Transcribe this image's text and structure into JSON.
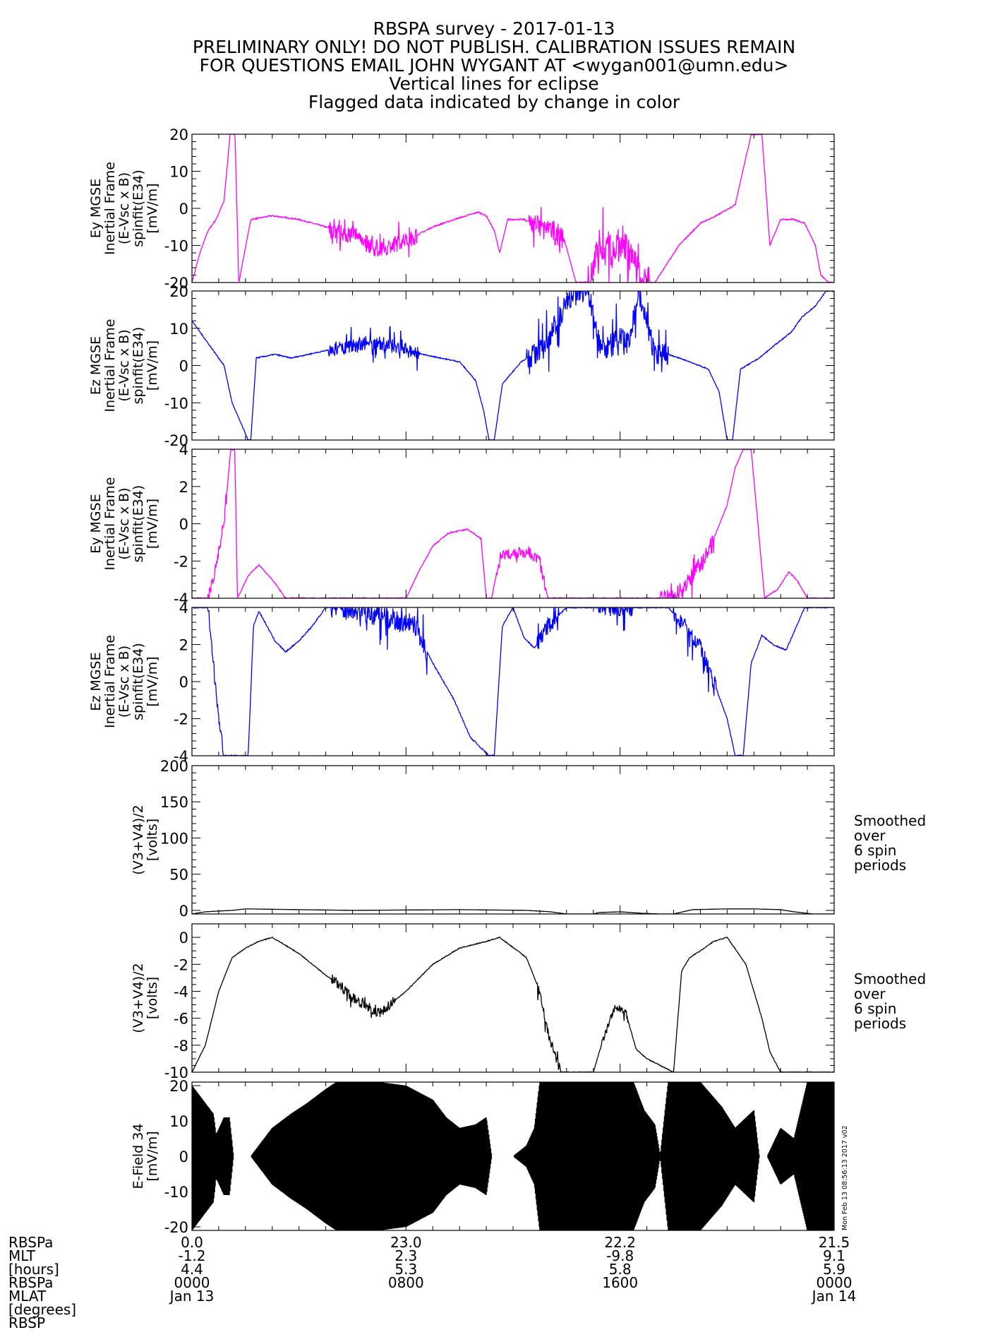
{
  "title_lines": [
    "RBSPA survey - 2017-01-13",
    "PRELIMINARY ONLY! DO NOT PUBLISH. CALIBRATION ISSUES REMAIN",
    "FOR QUESTIONS EMAIL JOHN WYGANT AT <wygan001@umn.edu>",
    "Vertical lines for eclipse",
    "Flagged data indicated by change in color"
  ],
  "colors": {
    "magenta": "#ff00ff",
    "blue": "#0000ff",
    "black": "#000000"
  },
  "side_note": [
    "Smoothed",
    "over",
    "6 spin",
    "periods"
  ],
  "timestamp": "Mon Feb 13 08:56:13 2017 v02",
  "chart_data": [
    {
      "type": "line",
      "name": "panel-ey-1",
      "color": "magenta",
      "ylabel": [
        "Ey MGSE",
        "Inertial Frame",
        "(E-Vsc x B)",
        "spinfit(E34)",
        "[mV/m]"
      ],
      "ylim": [
        -20,
        20
      ],
      "yticks": [
        -20,
        -10,
        0,
        10,
        20
      ],
      "minor": 5,
      "noise": 1.5,
      "x": [
        0,
        0.3,
        0.6,
        0.9,
        1.2,
        1.45,
        1.6,
        1.75,
        2.2,
        3,
        4,
        5,
        5.8,
        6.2,
        6.8,
        7.5,
        8.2,
        9,
        9.8,
        10.7,
        11,
        11.3,
        11.5,
        11.8,
        12.4,
        13.3,
        13.9,
        14.35,
        14.8,
        15.2,
        15.7,
        16.2,
        16.8,
        17.3,
        18.2,
        19,
        19.6,
        20.3,
        20.9,
        21.3,
        21.6,
        22,
        22.5,
        22.9,
        23.3,
        23.5,
        23.8,
        24
      ],
      "y": [
        -20,
        -12,
        -6,
        -3,
        2,
        22,
        22,
        -20,
        -3,
        -2,
        -3,
        -5,
        -7,
        -7,
        -11,
        -10,
        -8,
        -5,
        -3,
        -1,
        -2,
        -6,
        -12,
        -3,
        -3,
        -6,
        -8,
        -20,
        -20,
        -10,
        -12,
        -10,
        -20,
        -20,
        -10,
        -4,
        -2,
        1,
        20,
        20,
        -10,
        -3,
        -3,
        -4,
        -10,
        -18,
        -20,
        -20
      ],
      "noisy": [
        [
          5.1,
          8.4,
          3
        ],
        [
          12.6,
          13.9,
          4
        ],
        [
          14.8,
          17.1,
          6
        ]
      ]
    },
    {
      "type": "line",
      "name": "panel-ez-1",
      "color": "blue",
      "ylabel": [
        "Ez MGSE",
        "Inertial Frame",
        "(E-Vsc x B)",
        "spinfit(E34)",
        "[mV/m]"
      ],
      "ylim": [
        -20,
        20
      ],
      "yticks": [
        -20,
        -10,
        0,
        10,
        20
      ],
      "minor": 5,
      "noise": 1.2,
      "x": [
        0,
        0.3,
        0.6,
        0.9,
        1.2,
        1.5,
        2.1,
        2.2,
        2.4,
        3.1,
        3.7,
        5,
        6.5,
        7,
        7.8,
        8.6,
        10,
        10.6,
        10.9,
        11.1,
        11.3,
        11.6,
        12.3,
        12.8,
        13.2,
        13.5,
        13.9,
        14.3,
        14.8,
        15.3,
        15.8,
        16.3,
        16.7,
        17.3,
        17.8,
        18.6,
        19.3,
        19.7,
        20,
        20.2,
        20.5,
        21.2,
        21.7,
        22.4,
        22.8,
        23.3,
        23.7,
        24
      ],
      "y": [
        12,
        9,
        6,
        3,
        0,
        -10,
        -20,
        -20,
        2,
        3,
        2,
        4,
        6,
        6,
        5,
        3,
        1,
        -4,
        -12,
        -20,
        -20,
        -5,
        1,
        3,
        5,
        10,
        15,
        20,
        20,
        3,
        8,
        6,
        20,
        3,
        3,
        1,
        -1,
        -7,
        -20,
        -20,
        -1,
        2,
        5,
        9,
        13,
        16,
        20,
        20
      ],
      "noisy": [
        [
          5.1,
          8.5,
          3
        ],
        [
          12.5,
          17.8,
          5
        ]
      ]
    },
    {
      "type": "line",
      "name": "panel-ey-2",
      "color": "magenta",
      "ylabel": [
        "Ey MGSE",
        "Inertial Frame",
        "(E-Vsc x B)",
        "spinfit(E34)",
        "[mV/m]"
      ],
      "ylim": [
        -4,
        4
      ],
      "yticks": [
        -4,
        -2,
        0,
        2,
        4
      ],
      "minor": 5,
      "noise": 0.3,
      "x": [
        0,
        0.6,
        0.8,
        1,
        1.2,
        1.45,
        1.6,
        1.7,
        2.1,
        2.5,
        3,
        3.5,
        3.7,
        5,
        8,
        8.5,
        9,
        9.6,
        10.3,
        10.8,
        11,
        11.2,
        11.5,
        12,
        12.6,
        13,
        13.3,
        14,
        17,
        18,
        18.6,
        19.3,
        20,
        20.3,
        20.6,
        20.9,
        21.4,
        21.9,
        22.3,
        22.6,
        23,
        24
      ],
      "y": [
        -4,
        -4,
        -3,
        -1.5,
        0,
        4,
        4,
        -4,
        -2.8,
        -2.2,
        -3,
        -4,
        -4,
        -4,
        -4,
        -2.5,
        -1.2,
        -0.5,
        -0.3,
        -0.8,
        -4,
        -4,
        -1.8,
        -1.6,
        -1.5,
        -2,
        -4,
        -4,
        -4,
        -4,
        -3,
        -1.5,
        1,
        3,
        4,
        4,
        -4,
        -3.5,
        -2.6,
        -3,
        -4,
        -4
      ],
      "noisy": [
        [
          0.6,
          1.3,
          2
        ],
        [
          11.4,
          13.2,
          2
        ],
        [
          17.5,
          19.5,
          3
        ]
      ]
    },
    {
      "type": "line",
      "name": "panel-ez-2",
      "color": "blue",
      "ylabel": [
        "Ez MGSE",
        "Inertial Frame",
        "(E-Vsc x B)",
        "spinfit(E34)",
        "[mV/m]"
      ],
      "ylim": [
        -4,
        4
      ],
      "yticks": [
        -4,
        -2,
        0,
        2,
        4
      ],
      "minor": 5,
      "noise": 0.3,
      "x": [
        0,
        0.6,
        0.8,
        1,
        1.2,
        1.4,
        2.1,
        2.3,
        2.5,
        3.1,
        3.5,
        4,
        4.5,
        5,
        6,
        8.3,
        9,
        9.8,
        10.4,
        11.1,
        11.3,
        11.6,
        12,
        12.4,
        12.8,
        13.3,
        14,
        17.8,
        18.3,
        19,
        19.5,
        20,
        20.3,
        20.6,
        20.9,
        21.3,
        21.7,
        22.2,
        22.6,
        22.9,
        23.2,
        24
      ],
      "y": [
        4,
        4,
        1,
        -2,
        -4,
        -4,
        -4,
        3,
        3.8,
        2.2,
        1.6,
        2.2,
        3,
        4,
        4,
        3,
        1,
        -1,
        -3,
        -4,
        -4,
        3,
        4,
        2.4,
        1.8,
        3,
        4,
        4,
        3.2,
        1.8,
        0,
        -2,
        -4,
        -4,
        1,
        2.5,
        2,
        1.7,
        3,
        4,
        4,
        4
      ],
      "noisy": [
        [
          0.6,
          1.2,
          2
        ],
        [
          5.2,
          8.8,
          4
        ],
        [
          12.9,
          13.7,
          3
        ],
        [
          15.2,
          16.5,
          3
        ],
        [
          18,
          19.6,
          3
        ]
      ]
    },
    {
      "type": "line",
      "name": "panel-potential-1",
      "color": "black",
      "ylabel": [
        "(V3+V4)/2",
        "[volts]"
      ],
      "ylim": [
        -5,
        200
      ],
      "yticks": [
        0,
        50,
        100,
        150,
        200
      ],
      "minor": 5,
      "noise": 0.4,
      "annotation": true,
      "x": [
        0,
        0.5,
        1.5,
        2,
        4,
        6,
        10,
        12.5,
        13.4,
        14,
        15,
        15.2,
        16,
        16.8,
        17.5,
        18,
        18.7,
        20,
        21,
        22,
        22.5,
        23.2,
        24
      ],
      "y": [
        -5,
        -2,
        0,
        2,
        1,
        0,
        1,
        0,
        -2,
        -5,
        -5,
        -3,
        -2,
        -4,
        -5,
        -5,
        1,
        2,
        2,
        1,
        -2,
        -5,
        -5
      ],
      "noisy": []
    },
    {
      "type": "line",
      "name": "panel-potential-2",
      "color": "black",
      "ylabel": [
        "(V3+V4)/2",
        "[volts]"
      ],
      "ylim": [
        -10,
        1
      ],
      "yticks": [
        -10,
        -8,
        -6,
        -4,
        -2,
        0
      ],
      "minor": 4,
      "noise": 0.25,
      "annotation": true,
      "x": [
        0,
        0.5,
        1,
        1.5,
        2,
        2.5,
        3,
        4,
        5,
        5.5,
        6,
        7,
        8,
        9,
        10,
        11,
        11.5,
        12.5,
        13,
        13.3,
        13.6,
        13.8,
        14,
        15,
        15.3,
        15.8,
        16.2,
        16.6,
        17,
        18,
        18.3,
        18.6,
        19,
        19.5,
        20,
        20.7,
        21,
        21.3,
        21.6,
        22,
        22.5,
        23,
        24
      ],
      "y": [
        -10,
        -8,
        -4,
        -1.5,
        -0.8,
        -0.3,
        0,
        -1.2,
        -2.8,
        -3.5,
        -4.5,
        -5.6,
        -4,
        -2,
        -0.8,
        -0.3,
        0,
        -1.5,
        -4,
        -7,
        -9,
        -10,
        -10,
        -10,
        -8,
        -5.2,
        -5.5,
        -8.3,
        -9,
        -10,
        -2.5,
        -1.5,
        -1,
        -0.3,
        0,
        -2,
        -4,
        -6,
        -8.5,
        -10,
        -10,
        -10,
        -10
      ],
      "noisy": [
        [
          5.2,
          7.6,
          3
        ],
        [
          12.9,
          13.8,
          3
        ],
        [
          15.3,
          16.3,
          2
        ]
      ]
    },
    {
      "type": "band",
      "name": "panel-efield",
      "color": "black",
      "ylabel": [
        "E-Field 34",
        "[mV/m]"
      ],
      "ylim": [
        -21,
        21
      ],
      "yticks": [
        -20,
        -10,
        0,
        10,
        20
      ],
      "minor": 5,
      "x": [
        0,
        0.8,
        0.9,
        1.2,
        1.4,
        1.55,
        1.8,
        2.2,
        2.4,
        3,
        3.7,
        4.3,
        5,
        5.4,
        6,
        7,
        8,
        9,
        9.5,
        10,
        10.6,
        11,
        11.2,
        11.4,
        11.6,
        12,
        12.5,
        12.8,
        13,
        15,
        16.5,
        16.9,
        17.3,
        17.5,
        17.8,
        18.3,
        19,
        19.8,
        20.3,
        21,
        21.2,
        21.5,
        22,
        22.5,
        23,
        24
      ],
      "upper": [
        20,
        12,
        6,
        11,
        11,
        0,
        0,
        0,
        2,
        8,
        12,
        15,
        19,
        21,
        21,
        21,
        20,
        16,
        11,
        8,
        9,
        11,
        0,
        0,
        0,
        0,
        3,
        8,
        21,
        21,
        21,
        13,
        9,
        0,
        21,
        21,
        21,
        14,
        8,
        13,
        0,
        0,
        8,
        5,
        21,
        21
      ],
      "lower": [
        -21,
        -13,
        -6,
        -11,
        -11,
        0,
        0,
        0,
        -2,
        -8,
        -12,
        -15,
        -19,
        -21,
        -21,
        -21,
        -20,
        -16,
        -11,
        -8,
        -9,
        -11,
        0,
        0,
        0,
        0,
        -3,
        -8,
        -21,
        -21,
        -21,
        -13,
        -9,
        0,
        -21,
        -21,
        -21,
        -14,
        -8,
        -13,
        0,
        0,
        -8,
        -5,
        -21,
        -21
      ]
    }
  ],
  "xaxis": {
    "xlim": [
      0,
      24
    ],
    "major_ticks": [
      0,
      8,
      16,
      24
    ],
    "row_labels": [
      "RBSPa",
      "MLT",
      "[hours]",
      "RBSPa",
      "MLAT",
      "[degrees]",
      "RBSP"
    ],
    "columns": [
      {
        "x": 0,
        "values": [
          "0.0",
          "-1.2",
          "4.4",
          "0000",
          "Jan 13"
        ]
      },
      {
        "x": 8,
        "values": [
          "23.0",
          "2.3",
          "5.3",
          "0800",
          ""
        ]
      },
      {
        "x": 16,
        "values": [
          "22.2",
          "-9.8",
          "5.8",
          "1600",
          ""
        ]
      },
      {
        "x": 24,
        "values": [
          "21.5",
          "9.1",
          "5.9",
          "0000",
          "Jan 14"
        ]
      }
    ]
  }
}
